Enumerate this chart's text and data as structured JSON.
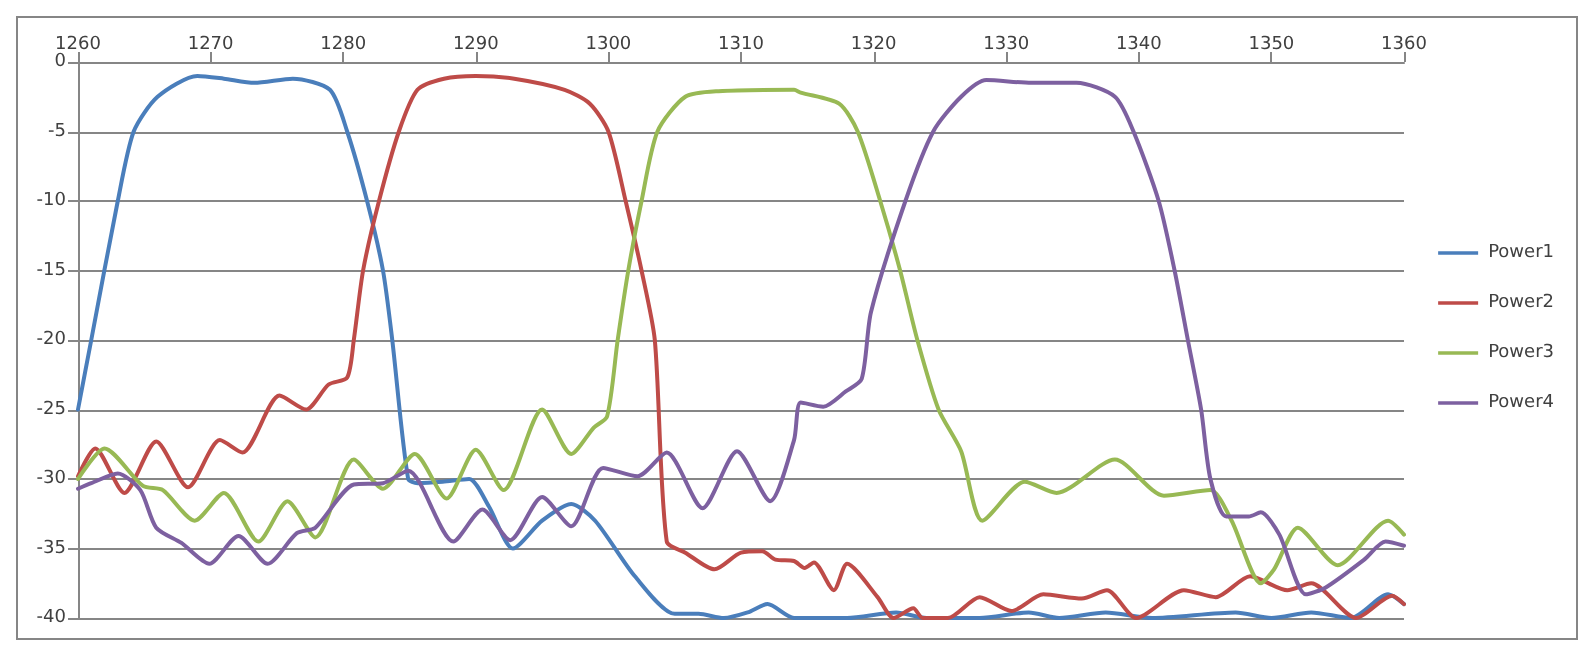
{
  "chart_data": {
    "type": "line",
    "xlim": [
      1260,
      1360
    ],
    "xticks": [
      1260,
      1270,
      1280,
      1290,
      1300,
      1310,
      1320,
      1330,
      1340,
      1350,
      1360
    ],
    "ylim": [
      -40,
      0
    ],
    "yticks": [
      -40,
      -35,
      -30,
      -25,
      -20,
      -15,
      -10,
      -5,
      0
    ],
    "grid": "y",
    "legend": "right",
    "marker": "none",
    "line_style": "solid",
    "series": [
      {
        "name": "Power1",
        "color": "#4a7ebb",
        "x": [
          1260,
          1261,
          1263,
          1264.2,
          1266,
          1269,
          1271,
          1273.3,
          1276.2,
          1279,
          1280.3,
          1281.8,
          1283,
          1283.7,
          1284.9,
          1285.6,
          1287.5,
          1289.5,
          1291,
          1292.8,
          1295,
          1297.2,
          1299,
          1302,
          1305,
          1306.8,
          1308.7,
          1310.5,
          1312,
          1314,
          1318,
          1321.7,
          1324,
          1328,
          1331.7,
          1334,
          1337.5,
          1341,
          1347.3,
          1350,
          1353,
          1356,
          1358.8,
          1360
        ],
        "values": [
          -25,
          -20,
          -10,
          -5,
          -2.5,
          -1,
          -1.2,
          -1.5,
          -1.2,
          -2,
          -5,
          -10,
          -15,
          -20,
          -30,
          -30.3,
          -30.2,
          -30,
          -32,
          -35,
          -33,
          -31.8,
          -33,
          -37,
          -39.7,
          -39.7,
          -40,
          -39.6,
          -39,
          -40,
          -40,
          -39.6,
          -40,
          -40,
          -39.6,
          -40,
          -39.6,
          -40,
          -39.6,
          -40,
          -39.6,
          -40,
          -38.3,
          -39
        ]
      },
      {
        "name": "Power2",
        "color": "#be4b48",
        "x": [
          1260,
          1261.3,
          1263.5,
          1265.9,
          1268.3,
          1270.7,
          1272.4,
          1275.2,
          1277.2,
          1278.9,
          1280.3,
          1280.8,
          1281.5,
          1282.7,
          1284.2,
          1285.6,
          1287.6,
          1290,
          1292.9,
          1296.7,
          1298.6,
          1300,
          1301.3,
          1302.5,
          1303.5,
          1304.4,
          1305.8,
          1308,
          1310,
          1311.6,
          1312.6,
          1314,
          1314.8,
          1315.5,
          1317,
          1318,
          1320.3,
          1321.5,
          1323,
          1323.7,
          1325.6,
          1328,
          1330.4,
          1332.8,
          1335.7,
          1337.6,
          1339.8,
          1343.4,
          1345.8,
          1348.4,
          1351.2,
          1353,
          1356.4,
          1359.1,
          1360
        ],
        "values": [
          -29.8,
          -27.8,
          -31,
          -27.3,
          -30.6,
          -27.2,
          -28.1,
          -24,
          -25,
          -23.2,
          -22.7,
          -20,
          -15,
          -10,
          -5,
          -2,
          -1.2,
          -1,
          -1.2,
          -2,
          -3,
          -5,
          -10,
          -15,
          -20,
          -34.5,
          -35.3,
          -36.5,
          -35.3,
          -35.2,
          -35.8,
          -35.9,
          -36.4,
          -36,
          -38,
          -36.1,
          -38.5,
          -40,
          -39.3,
          -40,
          -40,
          -38.5,
          -39.5,
          -38.3,
          -38.6,
          -38,
          -40,
          -38,
          -38.5,
          -37,
          -38,
          -37.5,
          -40,
          -38.4,
          -39
        ]
      },
      {
        "name": "Power3",
        "color": "#98b954",
        "x": [
          1260,
          1262,
          1264.9,
          1266.4,
          1268.8,
          1271,
          1273.6,
          1275.8,
          1277.9,
          1280.8,
          1283,
          1285.4,
          1287.8,
          1290,
          1292.1,
          1295,
          1297.2,
          1298.9,
          1299.9,
          1300.7,
          1301.5,
          1302.5,
          1303.7,
          1305.8,
          1308.3,
          1314,
          1314.5,
          1317.4,
          1318.8,
          1320.5,
          1322,
          1323.3,
          1324.9,
          1326.6,
          1328.2,
          1331.4,
          1333.8,
          1338.2,
          1341.9,
          1345.4,
          1347,
          1349.2,
          1350.2,
          1352,
          1355,
          1358.8,
          1360
        ],
        "values": [
          -30,
          -27.8,
          -30.5,
          -30.8,
          -33,
          -31,
          -34.5,
          -31.6,
          -34.2,
          -28.6,
          -30.7,
          -28.2,
          -31.4,
          -27.9,
          -30.8,
          -25,
          -28.2,
          -26.3,
          -25.5,
          -20,
          -15,
          -10,
          -5,
          -2.5,
          -2.1,
          -2,
          -2.2,
          -3,
          -5,
          -10,
          -15,
          -20,
          -25,
          -28,
          -33,
          -30.2,
          -31,
          -28.6,
          -31.2,
          -30.8,
          -33,
          -37.5,
          -36.5,
          -33.5,
          -36.2,
          -33,
          -34
        ]
      },
      {
        "name": "Power4",
        "color": "#7d60a0",
        "x": [
          1260,
          1261,
          1263,
          1264.7,
          1265.9,
          1267.8,
          1269.9,
          1272.1,
          1274.3,
          1276.5,
          1277.9,
          1280.8,
          1283,
          1284.9,
          1288.3,
          1290.5,
          1292.6,
          1295,
          1297.2,
          1299.6,
          1302.2,
          1304.4,
          1307.1,
          1309.7,
          1312.2,
          1314,
          1314.5,
          1316.2,
          1317.9,
          1319.1,
          1319.8,
          1322.4,
          1324.5,
          1326.6,
          1328.5,
          1331.9,
          1335.3,
          1338.2,
          1339.6,
          1341.5,
          1342.7,
          1343.7,
          1344.7,
          1345.4,
          1346.6,
          1348.3,
          1349.2,
          1350.6,
          1352.6,
          1354.1,
          1357,
          1358.6,
          1360
        ],
        "values": [
          -30.7,
          -30.3,
          -29.6,
          -30.8,
          -33.5,
          -34.6,
          -36.1,
          -34.1,
          -36.1,
          -33.9,
          -33.5,
          -30.4,
          -30.3,
          -29.4,
          -34.5,
          -32.2,
          -34.4,
          -31.3,
          -33.4,
          -29.2,
          -29.8,
          -28.1,
          -32.1,
          -28,
          -31.6,
          -27.2,
          -24.5,
          -24.8,
          -23.7,
          -22.8,
          -18,
          -10,
          -5,
          -2.5,
          -1.3,
          -1.5,
          -1.5,
          -2.5,
          -5,
          -10,
          -15,
          -20,
          -25,
          -30,
          -32.7,
          -32.7,
          -32.4,
          -34,
          -38.3,
          -37.8,
          -35.8,
          -34.5,
          -34.8
        ]
      }
    ]
  }
}
